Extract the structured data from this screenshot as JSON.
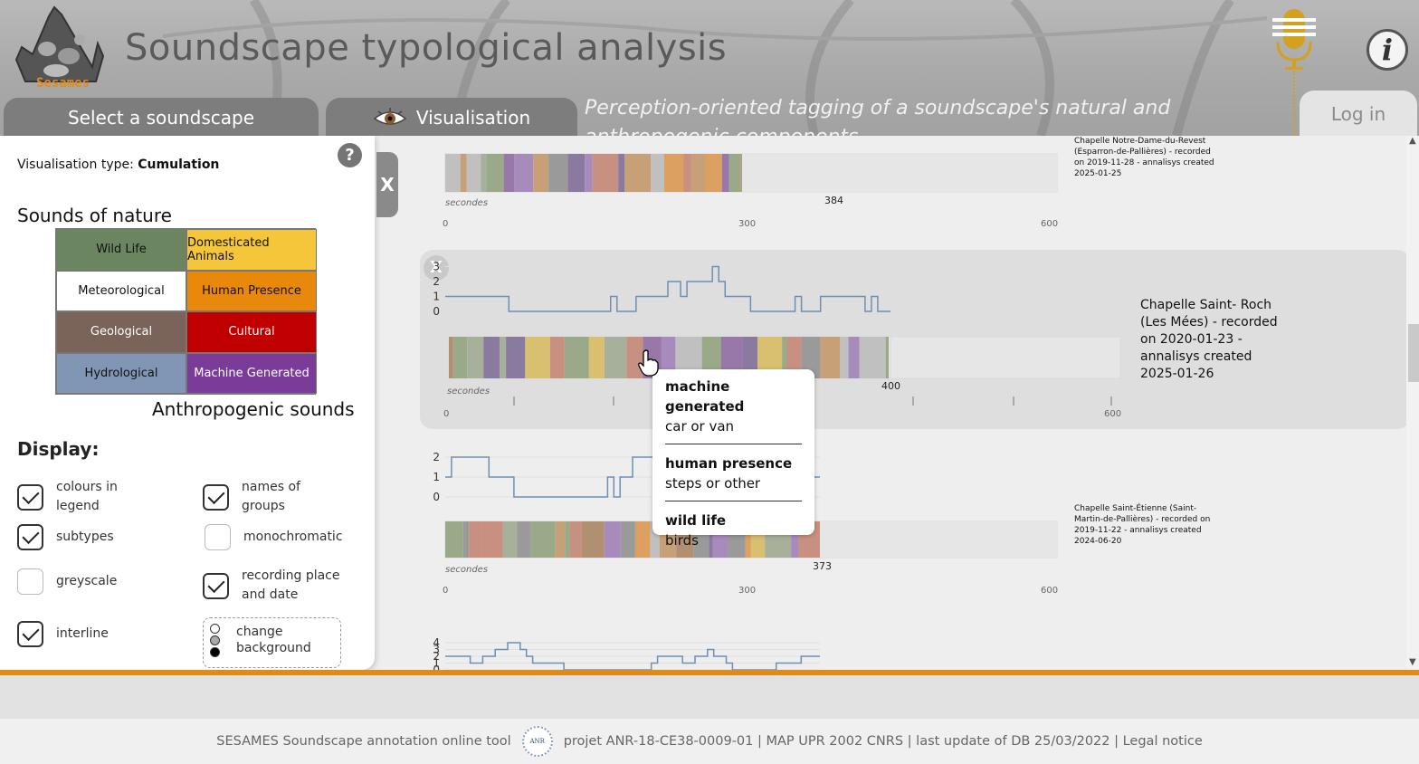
{
  "header": {
    "logo_text": "Sesames",
    "title": "Soundscape typological analysis",
    "subtitle": "Perception-oriented tagging of a soundscape's natural and anthropogenic components",
    "info_label": "i",
    "login_label": "Log in"
  },
  "tabs": [
    {
      "label": "Select a soundscape"
    },
    {
      "label": "Visualisation",
      "icon": "eye-icon"
    }
  ],
  "panel": {
    "help_label": "?",
    "vis_type_label": "Visualisation type:",
    "vis_type_value": "Cumulation",
    "nature_title": "Sounds of nature",
    "anthro_title": "Anthropogenic sounds",
    "legend": [
      {
        "label": "Wild Life",
        "color": "#6b8560",
        "text_color": "#111111"
      },
      {
        "label": "Domesticated Animals",
        "color": "#f5c63a",
        "text_color": "#111111"
      },
      {
        "label": "Meteorological",
        "color": "#ffffff",
        "text_color": "#111111"
      },
      {
        "label": "Human Presence",
        "color": "#e8890c",
        "text_color": "#111111"
      },
      {
        "label": "Geological",
        "color": "#7a6358",
        "text_color": "#ffffff"
      },
      {
        "label": "Cultural",
        "color": "#c00000",
        "text_color": "#ffffff"
      },
      {
        "label": "Hydrological",
        "color": "#8096b4",
        "text_color": "#111111"
      },
      {
        "label": "Machine Generated",
        "color": "#7a3c98",
        "text_color": "#ffffff"
      }
    ],
    "display_title": "Display:",
    "options": [
      {
        "label": "colours in legend",
        "checked": true
      },
      {
        "label": "names of groups",
        "checked": true
      },
      {
        "label": "subtypes",
        "checked": true
      },
      {
        "label": "monochromatic",
        "checked": false
      },
      {
        "label": "greyscale",
        "checked": false
      },
      {
        "label": "recording place and date",
        "checked": true
      },
      {
        "label": "interline",
        "checked": true
      }
    ],
    "background_option": "change background",
    "close_label": "X"
  },
  "recordings": [
    {
      "caption": "Chapelle Notre-Dame-du-Revest (Esparron-de-Pallières) - recorded on 2019-11-28 - annalisys created 2025-01-25",
      "end": 384
    },
    {
      "caption": "Chapelle Saint- Roch (Les Mées) - recorded on 2020-01-23 - annalisys created 2025-01-26",
      "end": 400
    },
    {
      "caption": "Chapelle Saint-Étienne (Saint-Martin-de-Pallières) - recorded on 2019-11-22 - annalisys created 2024-06-20",
      "end": 373
    }
  ],
  "axis": {
    "unit_label": "secondes",
    "ticks": [
      "0",
      "300",
      "600"
    ]
  },
  "card_close_label": "X",
  "tooltip": [
    {
      "group": "machine generated",
      "subtype": "car or van"
    },
    {
      "group": "human presence",
      "subtype": "steps or other"
    },
    {
      "group": "wild life",
      "subtype": "birds"
    }
  ],
  "footer": {
    "left": "SESAMES Soundscape annotation online tool",
    "anr_logo": "ANR",
    "right": "projet ANR-18-CE38-0009-01 | MAP UPR 2002 CNRS | last update of DB 25/03/2022 | Legal notice"
  }
}
